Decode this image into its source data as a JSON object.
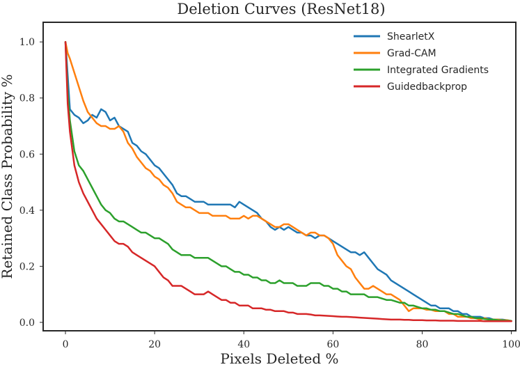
{
  "chart_data": {
    "type": "line",
    "title": "Deletion Curves (ResNet18)",
    "xlabel": "Pixels Deleted %",
    "ylabel": "Retained Class Probability %",
    "xlim": [
      -5,
      101
    ],
    "ylim": [
      -0.03,
      1.07
    ],
    "xticks": [
      0,
      20,
      40,
      60,
      80,
      100
    ],
    "yticks": [
      0.0,
      0.2,
      0.4,
      0.6,
      0.8,
      1.0
    ],
    "xtick_labels": [
      "0",
      "20",
      "40",
      "60",
      "80",
      "100"
    ],
    "ytick_labels": [
      "0.0",
      "0.2",
      "0.4",
      "0.6",
      "0.8",
      "1.0"
    ],
    "grid": false,
    "legend_position": "top-right",
    "series": [
      {
        "name": "ShearletX",
        "color": "#1f77b4",
        "x": [
          0,
          0.5,
          1,
          2,
          3,
          4,
          5,
          6,
          7,
          8,
          9,
          10,
          11,
          12,
          13,
          14,
          15,
          16,
          17,
          18,
          19,
          20,
          21,
          22,
          23,
          24,
          25,
          26,
          27,
          28,
          29,
          30,
          31,
          32,
          33,
          34,
          35,
          36,
          37,
          38,
          39,
          40,
          41,
          42,
          43,
          44,
          45,
          46,
          47,
          48,
          49,
          50,
          51,
          52,
          53,
          54,
          55,
          56,
          57,
          58,
          59,
          60,
          61,
          62,
          63,
          64,
          65,
          66,
          67,
          68,
          69,
          70,
          71,
          72,
          73,
          74,
          75,
          76,
          77,
          78,
          79,
          80,
          81,
          82,
          83,
          84,
          85,
          86,
          87,
          88,
          89,
          90,
          91,
          92,
          93,
          94,
          95,
          96,
          97,
          98,
          99,
          100
        ],
        "y": [
          1.0,
          0.88,
          0.76,
          0.74,
          0.73,
          0.71,
          0.72,
          0.74,
          0.73,
          0.76,
          0.75,
          0.72,
          0.73,
          0.7,
          0.69,
          0.68,
          0.64,
          0.63,
          0.61,
          0.6,
          0.58,
          0.56,
          0.55,
          0.53,
          0.51,
          0.49,
          0.46,
          0.45,
          0.45,
          0.44,
          0.43,
          0.43,
          0.43,
          0.42,
          0.42,
          0.42,
          0.42,
          0.42,
          0.42,
          0.41,
          0.43,
          0.42,
          0.41,
          0.4,
          0.39,
          0.37,
          0.36,
          0.34,
          0.33,
          0.34,
          0.33,
          0.34,
          0.33,
          0.32,
          0.32,
          0.31,
          0.31,
          0.3,
          0.31,
          0.31,
          0.3,
          0.29,
          0.28,
          0.27,
          0.26,
          0.25,
          0.25,
          0.24,
          0.25,
          0.23,
          0.21,
          0.19,
          0.18,
          0.17,
          0.15,
          0.14,
          0.13,
          0.12,
          0.11,
          0.1,
          0.09,
          0.08,
          0.07,
          0.06,
          0.06,
          0.05,
          0.05,
          0.05,
          0.04,
          0.04,
          0.03,
          0.03,
          0.02,
          0.02,
          0.02,
          0.015,
          0.015,
          0.01,
          0.01,
          0.01,
          0.008,
          0.005
        ]
      },
      {
        "name": "Grad-CAM",
        "color": "#ff7f0e",
        "x": [
          0,
          0.5,
          1,
          2,
          3,
          4,
          5,
          6,
          7,
          8,
          9,
          10,
          11,
          12,
          13,
          14,
          15,
          16,
          17,
          18,
          19,
          20,
          21,
          22,
          23,
          24,
          25,
          26,
          27,
          28,
          29,
          30,
          31,
          32,
          33,
          34,
          35,
          36,
          37,
          38,
          39,
          40,
          41,
          42,
          43,
          44,
          45,
          46,
          47,
          48,
          49,
          50,
          51,
          52,
          53,
          54,
          55,
          56,
          57,
          58,
          59,
          60,
          61,
          62,
          63,
          64,
          65,
          66,
          67,
          68,
          69,
          70,
          71,
          72,
          73,
          74,
          75,
          76,
          77,
          78,
          79,
          80,
          81,
          82,
          83,
          84,
          85,
          86,
          87,
          88,
          89,
          90,
          91,
          92,
          93,
          94,
          95,
          96,
          97,
          98,
          99,
          100
        ],
        "y": [
          1.0,
          0.96,
          0.94,
          0.89,
          0.84,
          0.79,
          0.75,
          0.73,
          0.71,
          0.7,
          0.7,
          0.69,
          0.69,
          0.7,
          0.68,
          0.64,
          0.62,
          0.59,
          0.57,
          0.55,
          0.54,
          0.52,
          0.51,
          0.49,
          0.48,
          0.46,
          0.43,
          0.42,
          0.41,
          0.41,
          0.4,
          0.39,
          0.39,
          0.39,
          0.38,
          0.38,
          0.38,
          0.38,
          0.37,
          0.37,
          0.37,
          0.38,
          0.37,
          0.38,
          0.38,
          0.37,
          0.36,
          0.35,
          0.34,
          0.34,
          0.35,
          0.35,
          0.34,
          0.33,
          0.32,
          0.31,
          0.32,
          0.32,
          0.31,
          0.31,
          0.3,
          0.28,
          0.24,
          0.22,
          0.2,
          0.19,
          0.16,
          0.14,
          0.12,
          0.12,
          0.13,
          0.12,
          0.11,
          0.1,
          0.1,
          0.09,
          0.08,
          0.06,
          0.04,
          0.05,
          0.05,
          0.05,
          0.045,
          0.045,
          0.04,
          0.04,
          0.04,
          0.03,
          0.03,
          0.02,
          0.02,
          0.02,
          0.015,
          0.015,
          0.01,
          0.015,
          0.01,
          0.01,
          0.01,
          0.008,
          0.008,
          0.005
        ]
      },
      {
        "name": "Integrated Gradients",
        "color": "#2ca02c",
        "x": [
          0,
          0.5,
          1,
          2,
          3,
          4,
          5,
          6,
          7,
          8,
          9,
          10,
          11,
          12,
          13,
          14,
          15,
          16,
          17,
          18,
          19,
          20,
          21,
          22,
          23,
          24,
          25,
          26,
          27,
          28,
          29,
          30,
          31,
          32,
          33,
          34,
          35,
          36,
          37,
          38,
          39,
          40,
          41,
          42,
          43,
          44,
          45,
          46,
          47,
          48,
          49,
          50,
          51,
          52,
          53,
          54,
          55,
          56,
          57,
          58,
          59,
          60,
          61,
          62,
          63,
          64,
          65,
          66,
          67,
          68,
          69,
          70,
          71,
          72,
          73,
          74,
          75,
          76,
          77,
          78,
          79,
          80,
          81,
          82,
          83,
          84,
          85,
          86,
          87,
          88,
          89,
          90,
          91,
          92,
          93,
          94,
          95,
          96,
          97,
          98,
          99,
          100
        ],
        "y": [
          1.0,
          0.82,
          0.72,
          0.61,
          0.56,
          0.54,
          0.51,
          0.48,
          0.45,
          0.42,
          0.4,
          0.39,
          0.37,
          0.36,
          0.36,
          0.35,
          0.34,
          0.33,
          0.32,
          0.32,
          0.31,
          0.3,
          0.3,
          0.29,
          0.28,
          0.26,
          0.25,
          0.24,
          0.24,
          0.24,
          0.23,
          0.23,
          0.23,
          0.23,
          0.22,
          0.21,
          0.2,
          0.2,
          0.19,
          0.18,
          0.18,
          0.17,
          0.17,
          0.16,
          0.16,
          0.15,
          0.15,
          0.14,
          0.14,
          0.15,
          0.14,
          0.14,
          0.14,
          0.13,
          0.13,
          0.13,
          0.14,
          0.14,
          0.14,
          0.13,
          0.13,
          0.12,
          0.12,
          0.11,
          0.11,
          0.1,
          0.1,
          0.1,
          0.1,
          0.09,
          0.09,
          0.09,
          0.085,
          0.08,
          0.08,
          0.075,
          0.07,
          0.07,
          0.06,
          0.06,
          0.055,
          0.05,
          0.05,
          0.045,
          0.045,
          0.04,
          0.04,
          0.035,
          0.03,
          0.03,
          0.025,
          0.02,
          0.02,
          0.015,
          0.015,
          0.012,
          0.01,
          0.01,
          0.008,
          0.007,
          0.006,
          0.005
        ]
      },
      {
        "name": "Guidedbackprop",
        "color": "#d62728",
        "x": [
          0,
          0.5,
          1,
          2,
          3,
          4,
          5,
          6,
          7,
          8,
          9,
          10,
          11,
          12,
          13,
          14,
          15,
          16,
          17,
          18,
          19,
          20,
          21,
          22,
          23,
          24,
          25,
          26,
          27,
          28,
          29,
          30,
          31,
          32,
          33,
          34,
          35,
          36,
          37,
          38,
          39,
          40,
          41,
          42,
          43,
          44,
          45,
          46,
          47,
          48,
          49,
          50,
          51,
          52,
          53,
          54,
          55,
          56,
          57,
          58,
          59,
          60,
          61,
          62,
          63,
          64,
          65,
          66,
          67,
          68,
          69,
          70,
          71,
          72,
          73,
          74,
          75,
          76,
          77,
          78,
          79,
          80,
          81,
          82,
          83,
          84,
          85,
          86,
          87,
          88,
          89,
          90,
          91,
          92,
          93,
          94,
          95,
          96,
          97,
          98,
          99,
          100
        ],
        "y": [
          1.0,
          0.78,
          0.68,
          0.56,
          0.5,
          0.46,
          0.43,
          0.4,
          0.37,
          0.35,
          0.33,
          0.31,
          0.29,
          0.28,
          0.28,
          0.27,
          0.25,
          0.24,
          0.23,
          0.22,
          0.21,
          0.2,
          0.18,
          0.16,
          0.15,
          0.13,
          0.13,
          0.13,
          0.12,
          0.11,
          0.1,
          0.1,
          0.1,
          0.11,
          0.1,
          0.09,
          0.08,
          0.08,
          0.07,
          0.07,
          0.06,
          0.06,
          0.06,
          0.05,
          0.05,
          0.05,
          0.045,
          0.045,
          0.04,
          0.04,
          0.04,
          0.035,
          0.035,
          0.03,
          0.03,
          0.03,
          0.028,
          0.025,
          0.025,
          0.024,
          0.023,
          0.022,
          0.021,
          0.02,
          0.02,
          0.019,
          0.018,
          0.017,
          0.016,
          0.015,
          0.014,
          0.013,
          0.012,
          0.011,
          0.01,
          0.01,
          0.01,
          0.009,
          0.009,
          0.008,
          0.008,
          0.008,
          0.007,
          0.007,
          0.007,
          0.006,
          0.006,
          0.006,
          0.006,
          0.005,
          0.005,
          0.005,
          0.005,
          0.005,
          0.005,
          0.004,
          0.004,
          0.004,
          0.004,
          0.004,
          0.004,
          0.004
        ]
      }
    ]
  }
}
